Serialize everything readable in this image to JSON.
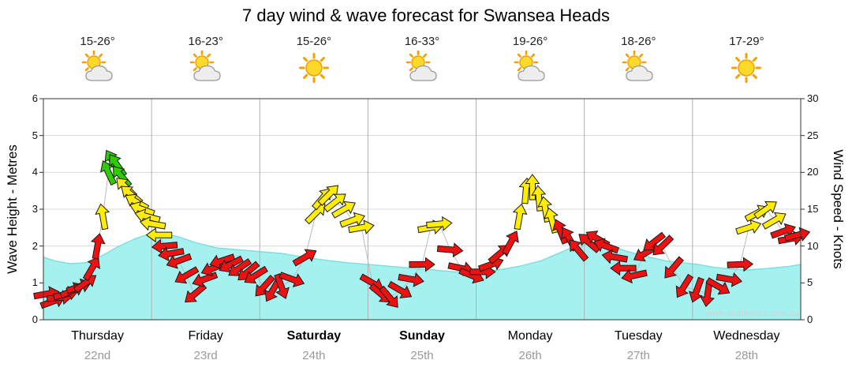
{
  "title": "7 day wind & wave forecast for Swansea Heads",
  "watermark": "www.seabreeze.com.au",
  "axes": {
    "left_label": "Wave Height - Metres",
    "right_label": "Wind Speed - Knots",
    "left_ticks": [
      0,
      1,
      2,
      3,
      4,
      5,
      6
    ],
    "right_ticks": [
      0,
      5,
      10,
      15,
      20,
      25,
      30
    ]
  },
  "days": [
    {
      "name": "Thursday",
      "date": "22nd",
      "temp": "15-26°",
      "icon": "partly-cloudy",
      "bold": false
    },
    {
      "name": "Friday",
      "date": "23rd",
      "temp": "16-23°",
      "icon": "partly-cloudy",
      "bold": false
    },
    {
      "name": "Saturday",
      "date": "24th",
      "temp": "15-26°",
      "icon": "sunny",
      "bold": true
    },
    {
      "name": "Sunday",
      "date": "25th",
      "temp": "16-33°",
      "icon": "partly-cloudy",
      "bold": true
    },
    {
      "name": "Monday",
      "date": "26th",
      "temp": "19-26°",
      "icon": "partly-cloudy",
      "bold": false
    },
    {
      "name": "Tuesday",
      "date": "27th",
      "temp": "18-26°",
      "icon": "partly-cloudy",
      "bold": false
    },
    {
      "name": "Wednesday",
      "date": "28th",
      "temp": "17-29°",
      "icon": "sunny",
      "bold": false
    }
  ],
  "chart_data": {
    "type": "area+wind-arrows",
    "x_unit": "days (0 = Thursday 00:00, 7 = end of Wednesday)",
    "ylim_left_metres": [
      0,
      6
    ],
    "ylim_right_knots": [
      0,
      30
    ],
    "grid": "horizontal each metre, vertical each day boundary",
    "colors": {
      "area": "#a5f1f0",
      "area_edge": "#7adede",
      "red": "#ee1111",
      "yellow": "#ffee00",
      "green": "#2ecc00",
      "grid": "#d8d8d8",
      "dayline": "#b0b0b0",
      "windline": "#bbbbbb",
      "border": "#333333"
    },
    "wave_height_m": [
      [
        0,
        1.7
      ],
      [
        0.1,
        1.6
      ],
      [
        0.25,
        1.52
      ],
      [
        0.4,
        1.55
      ],
      [
        0.55,
        1.75
      ],
      [
        0.7,
        2.0
      ],
      [
        0.85,
        2.2
      ],
      [
        1.0,
        2.35
      ],
      [
        1.1,
        2.35
      ],
      [
        1.25,
        2.25
      ],
      [
        1.4,
        2.1
      ],
      [
        1.6,
        1.95
      ],
      [
        1.8,
        1.9
      ],
      [
        2.0,
        1.85
      ],
      [
        2.2,
        1.8
      ],
      [
        2.4,
        1.7
      ],
      [
        2.6,
        1.62
      ],
      [
        2.8,
        1.55
      ],
      [
        3.0,
        1.5
      ],
      [
        3.2,
        1.45
      ],
      [
        3.4,
        1.4
      ],
      [
        3.6,
        1.35
      ],
      [
        3.8,
        1.3
      ],
      [
        4.0,
        1.3
      ],
      [
        4.2,
        1.35
      ],
      [
        4.4,
        1.45
      ],
      [
        4.6,
        1.6
      ],
      [
        4.8,
        1.85
      ],
      [
        4.95,
        2.05
      ],
      [
        5.1,
        2.1
      ],
      [
        5.25,
        2.0
      ],
      [
        5.4,
        1.85
      ],
      [
        5.6,
        1.7
      ],
      [
        5.75,
        1.6
      ],
      [
        5.9,
        1.55
      ],
      [
        6.05,
        1.5
      ],
      [
        6.2,
        1.42
      ],
      [
        6.35,
        1.38
      ],
      [
        6.5,
        1.35
      ],
      [
        6.65,
        1.38
      ],
      [
        6.8,
        1.42
      ],
      [
        6.9,
        1.45
      ],
      [
        7,
        1.5
      ]
    ],
    "arrow_fields": [
      "day_x",
      "knots",
      "direction_deg",
      "color"
    ],
    "wind_arrows": [
      [
        0.03,
        3.5,
        80,
        "red"
      ],
      [
        0.09,
        2.5,
        70,
        "red"
      ],
      [
        0.15,
        3,
        85,
        "red"
      ],
      [
        0.21,
        3.5,
        75,
        "red"
      ],
      [
        0.27,
        4,
        65,
        "red"
      ],
      [
        0.33,
        4.5,
        70,
        "red"
      ],
      [
        0.39,
        5,
        55,
        "red"
      ],
      [
        0.45,
        7,
        30,
        "red"
      ],
      [
        0.5,
        10,
        10,
        "red"
      ],
      [
        0.55,
        14,
        350,
        "yellow"
      ],
      [
        0.6,
        20,
        335,
        "green"
      ],
      [
        0.64,
        21.5,
        330,
        "green"
      ],
      [
        0.68,
        21,
        325,
        "green"
      ],
      [
        0.72,
        19.5,
        320,
        "green"
      ],
      [
        0.76,
        18,
        315,
        "yellow"
      ],
      [
        0.81,
        17,
        310,
        "yellow"
      ],
      [
        0.86,
        16,
        300,
        "yellow"
      ],
      [
        0.91,
        15,
        290,
        "yellow"
      ],
      [
        0.96,
        14,
        285,
        "yellow"
      ],
      [
        1.01,
        13,
        280,
        "yellow"
      ],
      [
        1.07,
        11.5,
        270,
        "yellow"
      ],
      [
        1.12,
        10,
        265,
        "red"
      ],
      [
        1.18,
        9,
        260,
        "red"
      ],
      [
        1.25,
        8,
        250,
        "red"
      ],
      [
        1.32,
        6,
        240,
        "red"
      ],
      [
        1.4,
        3.5,
        230,
        "red"
      ],
      [
        1.49,
        5.5,
        250,
        "red"
      ],
      [
        1.57,
        7,
        248,
        "red"
      ],
      [
        1.65,
        8,
        252,
        "red"
      ],
      [
        1.73,
        7.5,
        242,
        "red"
      ],
      [
        1.81,
        7,
        236,
        "red"
      ],
      [
        1.89,
        6.5,
        230,
        "red"
      ],
      [
        1.96,
        6,
        238,
        "red"
      ],
      [
        2.04,
        4.5,
        222,
        "red"
      ],
      [
        2.12,
        4,
        210,
        "red"
      ],
      [
        2.2,
        4.5,
        160,
        "red"
      ],
      [
        2.3,
        5.5,
        110,
        "red"
      ],
      [
        2.42,
        8.5,
        60,
        "red"
      ],
      [
        2.52,
        14.5,
        45,
        "yellow"
      ],
      [
        2.58,
        16.5,
        40,
        "yellow"
      ],
      [
        2.64,
        17,
        45,
        "yellow"
      ],
      [
        2.7,
        16,
        52,
        "yellow"
      ],
      [
        2.78,
        15,
        60,
        "yellow"
      ],
      [
        2.86,
        13.5,
        70,
        "yellow"
      ],
      [
        2.94,
        12.5,
        80,
        "yellow"
      ],
      [
        3.04,
        5,
        120,
        "red"
      ],
      [
        3.12,
        3.5,
        130,
        "red"
      ],
      [
        3.2,
        3,
        140,
        "red"
      ],
      [
        3.3,
        4,
        120,
        "red"
      ],
      [
        3.4,
        5.5,
        100,
        "red"
      ],
      [
        3.5,
        7.5,
        90,
        "red"
      ],
      [
        3.58,
        12.5,
        80,
        "yellow"
      ],
      [
        3.66,
        13,
        85,
        "yellow"
      ],
      [
        3.76,
        9.5,
        95,
        "red"
      ],
      [
        3.86,
        7,
        102,
        "red"
      ],
      [
        3.96,
        6,
        112,
        "red"
      ],
      [
        4.06,
        6.5,
        90,
        "red"
      ],
      [
        4.14,
        7.5,
        70,
        "red"
      ],
      [
        4.22,
        9,
        50,
        "red"
      ],
      [
        4.32,
        10.5,
        28,
        "red"
      ],
      [
        4.4,
        14,
        10,
        "yellow"
      ],
      [
        4.46,
        17.5,
        5,
        "yellow"
      ],
      [
        4.52,
        18,
        0,
        "yellow"
      ],
      [
        4.58,
        16.5,
        355,
        "yellow"
      ],
      [
        4.64,
        15,
        350,
        "yellow"
      ],
      [
        4.7,
        13.5,
        345,
        "yellow"
      ],
      [
        4.78,
        12,
        338,
        "red"
      ],
      [
        4.86,
        11,
        330,
        "red"
      ],
      [
        4.94,
        9.5,
        320,
        "red"
      ],
      [
        5.04,
        10.5,
        310,
        "red"
      ],
      [
        5.12,
        11,
        300,
        "red"
      ],
      [
        5.2,
        10,
        290,
        "red"
      ],
      [
        5.28,
        8.5,
        280,
        "red"
      ],
      [
        5.36,
        7,
        270,
        "red"
      ],
      [
        5.46,
        6,
        258,
        "red"
      ],
      [
        5.56,
        9,
        240,
        "red"
      ],
      [
        5.64,
        10.5,
        232,
        "red"
      ],
      [
        5.72,
        10,
        226,
        "red"
      ],
      [
        5.82,
        7,
        220,
        "red"
      ],
      [
        5.92,
        4.5,
        212,
        "red"
      ],
      [
        6.04,
        4,
        200,
        "red"
      ],
      [
        6.14,
        3.5,
        188,
        "red"
      ],
      [
        6.24,
        4.5,
        120,
        "red"
      ],
      [
        6.34,
        5.5,
        100,
        "red"
      ],
      [
        6.44,
        7.5,
        88,
        "red"
      ],
      [
        6.52,
        12.5,
        72,
        "yellow"
      ],
      [
        6.6,
        14.5,
        62,
        "yellow"
      ],
      [
        6.68,
        15,
        55,
        "yellow"
      ],
      [
        6.76,
        13.5,
        60,
        "yellow"
      ],
      [
        6.84,
        12,
        70,
        "red"
      ],
      [
        6.91,
        11,
        80,
        "red"
      ],
      [
        6.97,
        11.5,
        76,
        "red"
      ]
    ]
  }
}
